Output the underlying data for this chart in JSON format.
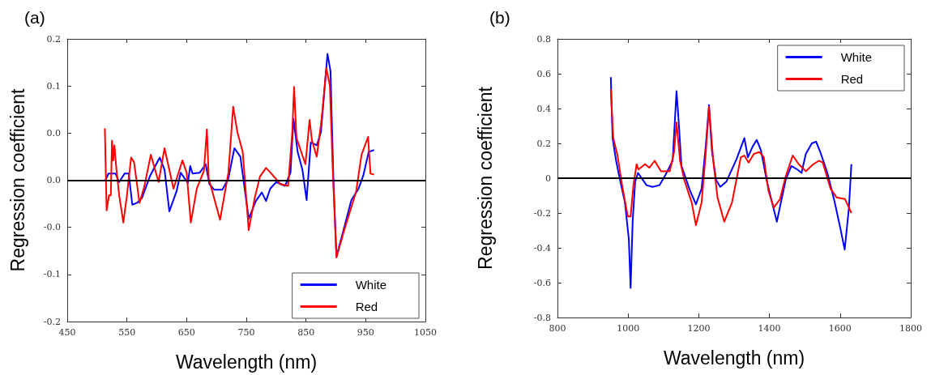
{
  "chart_data": [
    {
      "type": "line",
      "title": "(a)",
      "xlabel": "Wavelength (nm)",
      "ylabel": "Regression coefficient",
      "xlim": [
        450,
        1050
      ],
      "xticks": [
        450,
        550,
        650,
        750,
        850,
        950,
        1050
      ],
      "ylim": [
        -0.15,
        0.15
      ],
      "yticks": [
        {
          "value": -0.15,
          "label": "-0.2"
        },
        {
          "value": -0.1,
          "label": "-0.1"
        },
        {
          "value": -0.05,
          "label": "-0.0"
        },
        {
          "value": 0,
          "label": "0.0"
        },
        {
          "value": 0.05,
          "label": "0.0"
        },
        {
          "value": 0.1,
          "label": "0.1"
        },
        {
          "value": 0.15,
          "label": "0.2"
        }
      ],
      "legend": "bottom right",
      "grid": false,
      "ref_lines": [
        {
          "axis": "y",
          "value": 0,
          "color": "#000000"
        }
      ],
      "series": [
        {
          "name": "White",
          "color": "#0000ff",
          "x": [
            514,
            519,
            531,
            537,
            546,
            553,
            559,
            567,
            575,
            589,
            605,
            613,
            621,
            633,
            640,
            652,
            656,
            660,
            672,
            682,
            688,
            696,
            710,
            720,
            730,
            740,
            754,
            766,
            776,
            783,
            790,
            800,
            815,
            824,
            829,
            836,
            844,
            851,
            858,
            868,
            875,
            886,
            891,
            896,
            901,
            912,
            926,
            938,
            946,
            955,
            964
          ],
          "values": [
            0,
            0.007,
            0.007,
            -0.002,
            0.007,
            0.007,
            -0.026,
            -0.024,
            -0.019,
            0.005,
            0.024,
            0.011,
            -0.033,
            -0.012,
            0.008,
            -0.003,
            0.015,
            0.007,
            0.008,
            0.017,
            -0.004,
            -0.01,
            -0.01,
            0.002,
            0.034,
            0.025,
            -0.041,
            -0.022,
            -0.013,
            -0.022,
            -0.009,
            -0.002,
            -0.006,
            0.008,
            0.065,
            0.03,
            0.011,
            -0.021,
            0.04,
            0.037,
            0.051,
            0.134,
            0.116,
            -0.001,
            -0.081,
            -0.055,
            -0.021,
            -0.009,
            0.005,
            0.03,
            0.032
          ]
        },
        {
          "name": "Red",
          "color": "#ff0000",
          "x": [
            513,
            516,
            520,
            523,
            525,
            527,
            529,
            532,
            537,
            544,
            550,
            557,
            562,
            571,
            579,
            590,
            603,
            613,
            628,
            643,
            650,
            657,
            667,
            679,
            684,
            687,
            706,
            720,
            728,
            735,
            744,
            754,
            764,
            773,
            783,
            792,
            807,
            820,
            827,
            830,
            834,
            849,
            856,
            860,
            868,
            876,
            884,
            890,
            895,
            901,
            914,
            934,
            943,
            954,
            958,
            964
          ],
          "values": [
            0.055,
            -0.032,
            -0.016,
            -0.016,
            0.042,
            0.021,
            0.037,
            0.014,
            -0.016,
            -0.045,
            -0.016,
            0.024,
            0.019,
            -0.024,
            -0.007,
            0.027,
            -0.002,
            0.034,
            -0.009,
            0.021,
            0.008,
            -0.045,
            -0.009,
            0.01,
            0.054,
            0.002,
            -0.042,
            0.008,
            0.078,
            0.051,
            0.03,
            -0.053,
            -0.019,
            0.004,
            0.013,
            0.007,
            -0.004,
            -0.006,
            0.051,
            0.099,
            0.045,
            0.017,
            0.064,
            0.042,
            0.025,
            0.064,
            0.119,
            0.1,
            0.008,
            -0.082,
            -0.053,
            -0.012,
            0.027,
            0.046,
            0.007,
            0.006
          ]
        }
      ]
    },
    {
      "type": "line",
      "title": "(b)",
      "xlabel": "Wavelength (nm)",
      "ylabel": "Regression coefficient",
      "xlim": [
        800,
        1800
      ],
      "xticks": [
        800,
        1000,
        1200,
        1400,
        1600,
        1800
      ],
      "ylim": [
        -0.8,
        0.8
      ],
      "yticks": [
        -0.8,
        -0.6,
        -0.4,
        -0.2,
        0,
        0.2,
        0.4,
        0.6,
        0.8
      ],
      "legend": "top right",
      "grid": false,
      "ref_lines": [
        {
          "axis": "y",
          "value": 0,
          "color": "#000000"
        }
      ],
      "series": [
        {
          "name": "White",
          "color": "#0000ff",
          "x": [
            951,
            956,
            966,
            977,
            991,
            1002,
            1007,
            1013,
            1020,
            1028,
            1052,
            1069,
            1089,
            1106,
            1126,
            1137,
            1143,
            1151,
            1175,
            1192,
            1208,
            1220,
            1229,
            1237,
            1249,
            1261,
            1278,
            1307,
            1329,
            1339,
            1352,
            1364,
            1376,
            1393,
            1421,
            1446,
            1462,
            1479,
            1491,
            1503,
            1520,
            1532,
            1544,
            1564,
            1585,
            1601,
            1613,
            1625,
            1632
          ],
          "values": [
            0.58,
            0.23,
            0.1,
            -0.01,
            -0.14,
            -0.35,
            -0.63,
            -0.24,
            -0.02,
            0.03,
            -0.04,
            -0.05,
            -0.04,
            0.02,
            0.1,
            0.5,
            0.33,
            0.07,
            -0.07,
            -0.15,
            -0.06,
            0.19,
            0.42,
            0.16,
            -0.01,
            -0.05,
            -0.02,
            0.11,
            0.23,
            0.12,
            0.18,
            0.22,
            0.16,
            -0.02,
            -0.25,
            -0.01,
            0.07,
            0.05,
            0.03,
            0.14,
            0.2,
            0.21,
            0.15,
            0.03,
            -0.14,
            -0.29,
            -0.41,
            -0.17,
            0.08
          ]
        },
        {
          "name": "Red",
          "color": "#ff0000",
          "x": [
            951,
            954,
            958,
            970,
            983,
            999,
            1007,
            1015,
            1024,
            1029,
            1048,
            1060,
            1075,
            1093,
            1118,
            1130,
            1137,
            1147,
            1159,
            1180,
            1192,
            1208,
            1220,
            1229,
            1241,
            1253,
            1272,
            1294,
            1319,
            1329,
            1341,
            1356,
            1372,
            1384,
            1397,
            1412,
            1430,
            1446,
            1466,
            1483,
            1503,
            1524,
            1540,
            1551,
            1573,
            1590,
            1614,
            1632
          ],
          "values": [
            0.51,
            0.38,
            0.23,
            0.13,
            -0.04,
            -0.22,
            -0.22,
            -0.04,
            0.08,
            0.05,
            0.08,
            0.06,
            0.1,
            0.04,
            0.04,
            0.15,
            0.32,
            0.1,
            -0.01,
            -0.14,
            -0.27,
            -0.14,
            0.15,
            0.41,
            0.1,
            -0.11,
            -0.25,
            -0.14,
            0.12,
            0.13,
            0.09,
            0.14,
            0.15,
            0.12,
            -0.07,
            -0.17,
            -0.12,
            0.01,
            0.13,
            0.08,
            0.04,
            0.08,
            0.1,
            0.09,
            -0.06,
            -0.11,
            -0.12,
            -0.2
          ]
        }
      ]
    }
  ]
}
